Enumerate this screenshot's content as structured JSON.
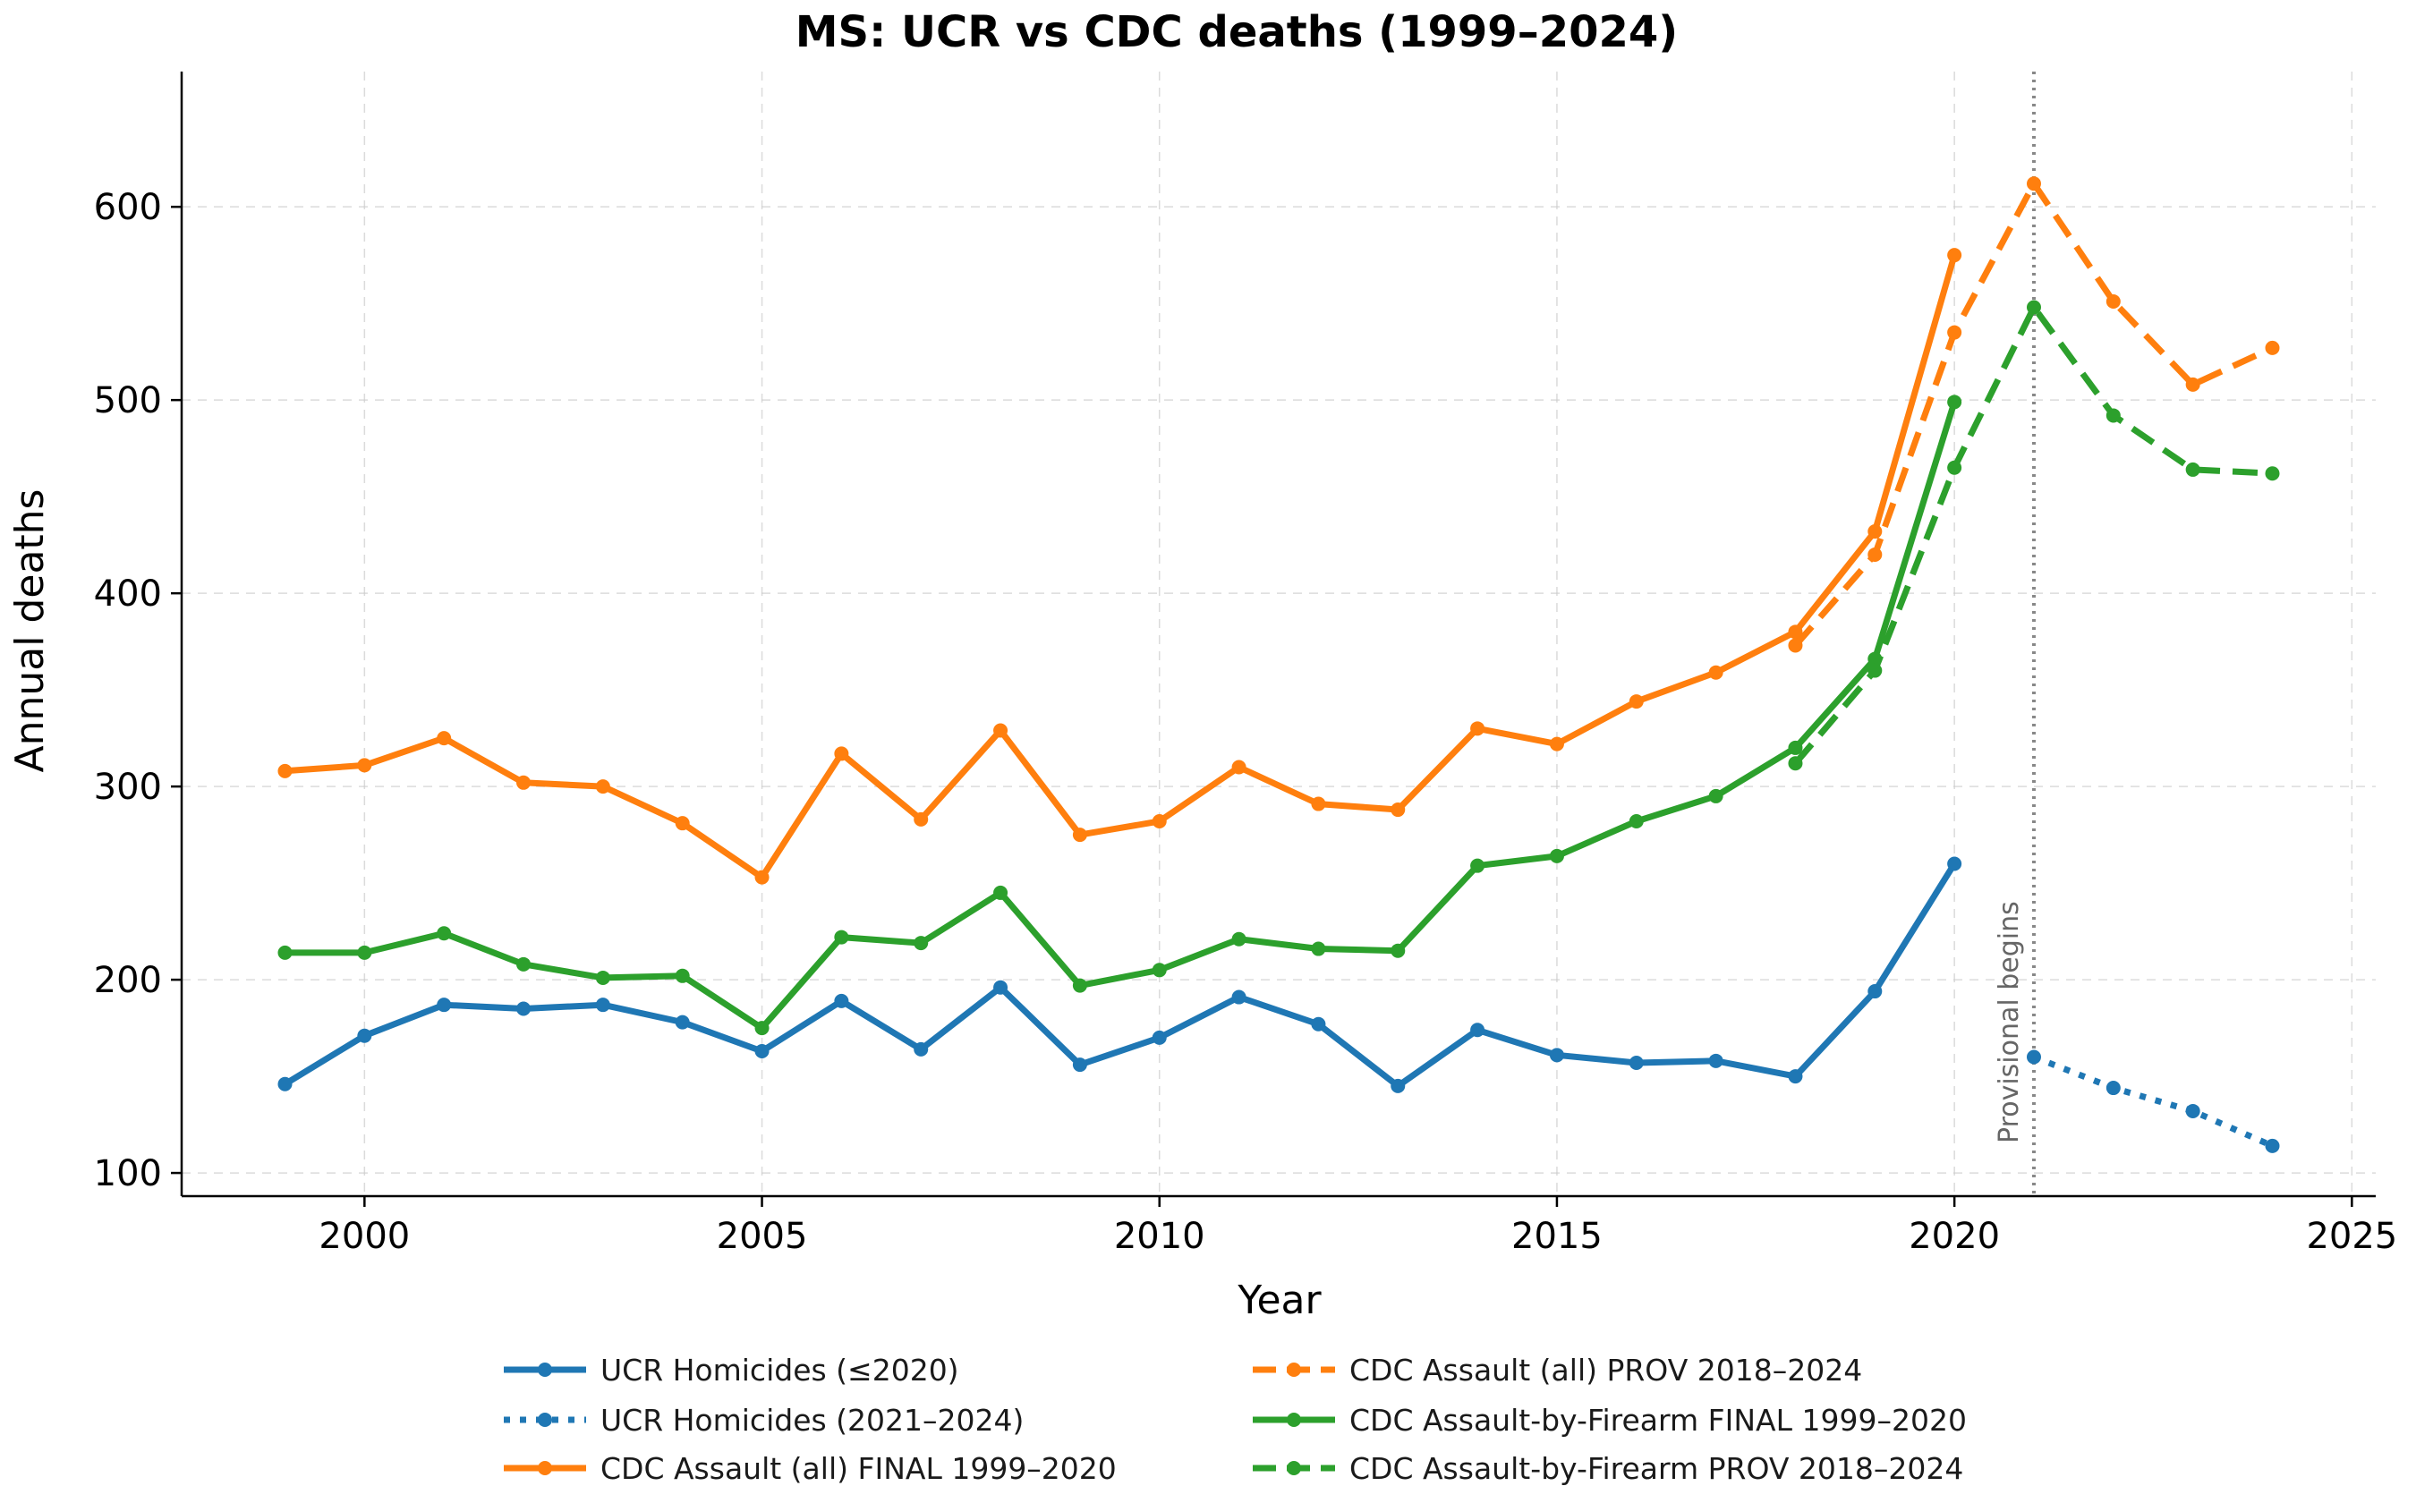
{
  "chart_data": {
    "type": "line",
    "title": "MS: UCR vs CDC deaths (1999–2024)",
    "xlabel": "Year",
    "ylabel": "Annual deaths",
    "xlim": [
      1997.7,
      2025.3
    ],
    "ylim": [
      88,
      670
    ],
    "xticks": [
      2000,
      2005,
      2010,
      2015,
      2020,
      2025
    ],
    "yticks": [
      100,
      200,
      300,
      400,
      500,
      600
    ],
    "grid": true,
    "legend_position": "bottom-center",
    "annotation": {
      "x": 2021,
      "label": "Provisional begins"
    },
    "series": [
      {
        "name": "UCR Homicides (≤2020)",
        "color": "#1f77b4",
        "style": "solid",
        "x": [
          1999,
          2000,
          2001,
          2002,
          2003,
          2004,
          2005,
          2006,
          2007,
          2008,
          2009,
          2010,
          2011,
          2012,
          2013,
          2014,
          2015,
          2016,
          2017,
          2018,
          2019,
          2020
        ],
        "y": [
          146,
          171,
          187,
          185,
          187,
          178,
          163,
          189,
          164,
          196,
          156,
          170,
          191,
          177,
          145,
          174,
          161,
          157,
          158,
          150,
          194,
          260
        ]
      },
      {
        "name": "UCR Homicides (2021–2024)",
        "color": "#1f77b4",
        "style": "dotted",
        "x": [
          2021,
          2022,
          2023,
          2024
        ],
        "y": [
          160,
          144,
          132,
          114
        ]
      },
      {
        "name": "CDC Assault (all) FINAL 1999–2020",
        "color": "#ff7f0e",
        "style": "solid",
        "x": [
          1999,
          2000,
          2001,
          2002,
          2003,
          2004,
          2005,
          2006,
          2007,
          2008,
          2009,
          2010,
          2011,
          2012,
          2013,
          2014,
          2015,
          2016,
          2017,
          2018,
          2019,
          2020
        ],
        "y": [
          308,
          311,
          325,
          302,
          300,
          281,
          253,
          317,
          283,
          329,
          275,
          282,
          310,
          291,
          288,
          330,
          322,
          344,
          359,
          380,
          432,
          575
        ]
      },
      {
        "name": "CDC Assault (all) PROV 2018–2024",
        "color": "#ff7f0e",
        "style": "dashed",
        "x": [
          2018,
          2019,
          2020,
          2021,
          2022,
          2023,
          2024
        ],
        "y": [
          373,
          420,
          535,
          612,
          551,
          508,
          527
        ]
      },
      {
        "name": "CDC Assault-by-Firearm FINAL 1999–2020",
        "color": "#2ca02c",
        "style": "solid",
        "x": [
          1999,
          2000,
          2001,
          2002,
          2003,
          2004,
          2005,
          2006,
          2007,
          2008,
          2009,
          2010,
          2011,
          2012,
          2013,
          2014,
          2015,
          2016,
          2017,
          2018,
          2019,
          2020
        ],
        "y": [
          214,
          214,
          224,
          208,
          201,
          202,
          175,
          222,
          219,
          245,
          197,
          205,
          221,
          216,
          215,
          259,
          264,
          282,
          295,
          320,
          366,
          499
        ]
      },
      {
        "name": "CDC Assault-by-Firearm PROV 2018–2024",
        "color": "#2ca02c",
        "style": "dashed",
        "x": [
          2018,
          2019,
          2020,
          2021,
          2022,
          2023,
          2024
        ],
        "y": [
          312,
          360,
          465,
          548,
          492,
          464,
          462
        ]
      }
    ]
  }
}
